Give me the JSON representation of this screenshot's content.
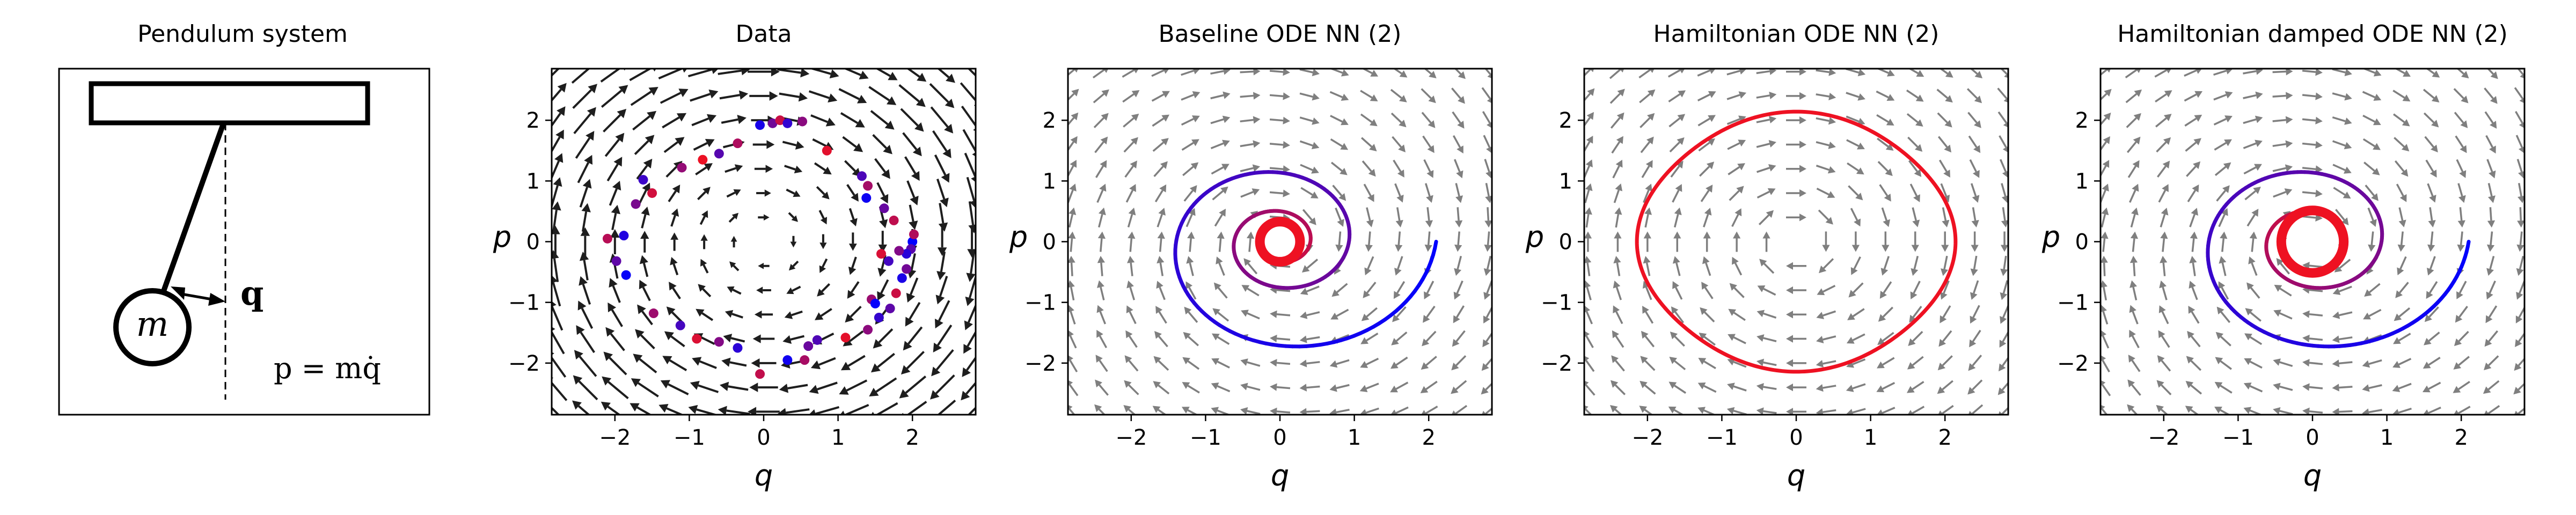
{
  "figure": {
    "panel_titles": [
      "Pendulum system",
      "Data",
      "Baseline ODE NN (2)",
      "Hamiltonian ODE NN (2)",
      "Hamiltonian damped ODE NN (2)"
    ],
    "pendulum": {
      "mass_label": "m",
      "q_label": "q",
      "p_label": "p = mq̇"
    },
    "colors": {
      "field_arrow": "#7f7f7f",
      "data_arrow": "#1e1e1e",
      "start": "#0000ff",
      "end": "#ee1122",
      "frame": "#000000"
    }
  },
  "chart_data": [
    {
      "type": "scatter",
      "title": "Data",
      "xlabel": "q",
      "ylabel": "p",
      "xlim": [
        -2.85,
        2.85
      ],
      "ylim": [
        -2.85,
        2.85
      ],
      "ticks": [
        -2,
        -1,
        0,
        1,
        2
      ],
      "tick_labels": [
        "−2",
        "−1",
        "0",
        "1",
        "2"
      ],
      "vector_field": "dq/dt = p, dp/dt = -q",
      "points": [
        [
          2.0,
          0.0
        ],
        [
          1.98,
          -0.12
        ],
        [
          2.02,
          0.12
        ],
        [
          1.86,
          -0.6
        ],
        [
          1.92,
          -0.45
        ],
        [
          1.78,
          -0.85
        ],
        [
          1.55,
          -1.25
        ],
        [
          1.4,
          -1.45
        ],
        [
          1.1,
          -1.58
        ],
        [
          0.72,
          -1.62
        ],
        [
          0.55,
          -1.95
        ],
        [
          0.32,
          -1.95
        ],
        [
          0.6,
          -1.72
        ],
        [
          -0.05,
          -2.18
        ],
        [
          -0.35,
          -1.75
        ],
        [
          -0.6,
          -1.65
        ],
        [
          -0.9,
          -1.6
        ],
        [
          -1.12,
          -1.38
        ],
        [
          -1.48,
          -1.18
        ],
        [
          -1.85,
          -0.55
        ],
        [
          -1.98,
          -0.32
        ],
        [
          -2.1,
          0.05
        ],
        [
          -1.88,
          0.1
        ],
        [
          -1.72,
          0.62
        ],
        [
          -1.5,
          0.8
        ],
        [
          -1.62,
          1.02
        ],
        [
          -1.1,
          1.22
        ],
        [
          -0.82,
          1.35
        ],
        [
          -0.6,
          1.45
        ],
        [
          -0.35,
          1.62
        ],
        [
          -0.05,
          1.92
        ],
        [
          0.12,
          1.95
        ],
        [
          0.22,
          2.0
        ],
        [
          0.32,
          1.95
        ],
        [
          0.52,
          1.98
        ],
        [
          0.85,
          1.5
        ],
        [
          1.32,
          1.08
        ],
        [
          1.4,
          0.92
        ],
        [
          1.38,
          0.72
        ],
        [
          1.62,
          0.55
        ],
        [
          1.75,
          0.35
        ],
        [
          1.92,
          -0.2
        ],
        [
          1.82,
          -0.15
        ],
        [
          1.58,
          -0.2
        ],
        [
          1.68,
          -0.32
        ],
        [
          1.45,
          -0.95
        ],
        [
          1.5,
          -1.02
        ],
        [
          1.7,
          -1.1
        ]
      ]
    },
    {
      "type": "line",
      "title": "Baseline ODE NN (2)",
      "xlabel": "q",
      "ylabel": "p",
      "xlim": [
        -2.85,
        2.85
      ],
      "ylim": [
        -2.85,
        2.85
      ],
      "ticks": [
        -2,
        -1,
        0,
        1,
        2
      ],
      "tick_labels": [
        "−2",
        "−1",
        "0",
        "1",
        "2"
      ],
      "vector_field": "inward spiral, rate 0.085",
      "trajectory": {
        "start": [
          2.1,
          0.0
        ],
        "end_radius": 0.27,
        "form": "decaying spiral"
      }
    },
    {
      "type": "line",
      "title": "Hamiltonian ODE NN (2)",
      "xlabel": "q",
      "ylabel": "p",
      "xlim": [
        -2.85,
        2.85
      ],
      "ylim": [
        -2.85,
        2.85
      ],
      "ticks": [
        -2,
        -1,
        0,
        1,
        2
      ],
      "tick_labels": [
        "−2",
        "−1",
        "0",
        "1",
        "2"
      ],
      "vector_field": "dq/dt = p, dp/dt = -q",
      "trajectory": {
        "start": [
          2.1,
          0.0
        ],
        "end_radius": 2.1,
        "form": "closed orbit"
      }
    },
    {
      "type": "line",
      "title": "Hamiltonian damped ODE NN (2)",
      "xlabel": "q",
      "ylabel": "p",
      "xlim": [
        -2.85,
        2.85
      ],
      "ylim": [
        -2.85,
        2.85
      ],
      "ticks": [
        -2,
        -1,
        0,
        1,
        2
      ],
      "tick_labels": [
        "−2",
        "−1",
        "0",
        "1",
        "2"
      ],
      "vector_field": "inward spiral, rate 0.1",
      "trajectory": {
        "start": [
          2.1,
          0.0
        ],
        "end_radius": 0.42,
        "form": "decaying spiral"
      }
    }
  ]
}
